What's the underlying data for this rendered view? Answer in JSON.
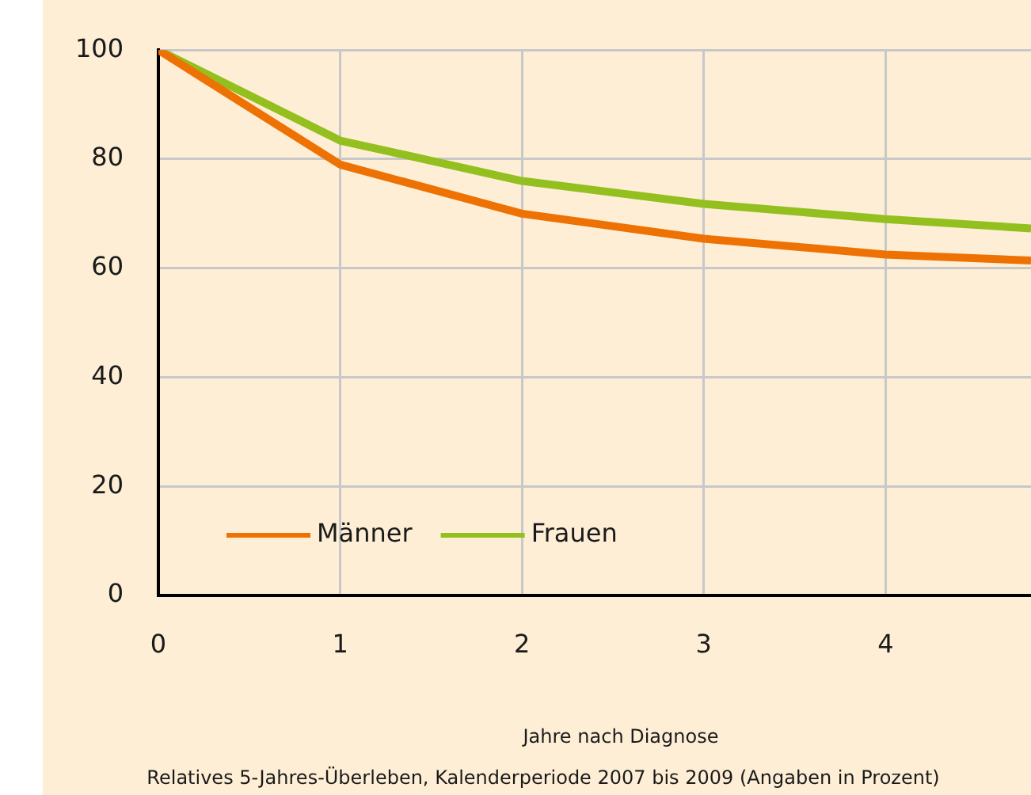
{
  "chart_data": {
    "type": "line",
    "xlabel": "Jahre nach Diagnose",
    "annotations": [
      "Relatives 5-Jahres-Überleben, Kalenderperiode 2007 bis 2009 (Angaben in Prozent)"
    ],
    "x": [
      0,
      1,
      2,
      3,
      4,
      4.8
    ],
    "series": [
      {
        "name": "Männer",
        "color": "#ee7203",
        "values": [
          100,
          79,
          70,
          65.4,
          62.5,
          61.4
        ]
      },
      {
        "name": "Frauen",
        "color": "#93c01f",
        "values": [
          100,
          83.4,
          76,
          71.8,
          69,
          67.3
        ]
      }
    ],
    "xlim": [
      0,
      4.8
    ],
    "xticks": [
      0,
      1,
      2,
      3,
      4
    ],
    "ylim": [
      0,
      100
    ],
    "yticks": [
      0,
      20,
      40,
      60,
      80,
      100
    ],
    "grid": true,
    "legend": "bottom left",
    "marker": "none",
    "line_style": "solid"
  }
}
